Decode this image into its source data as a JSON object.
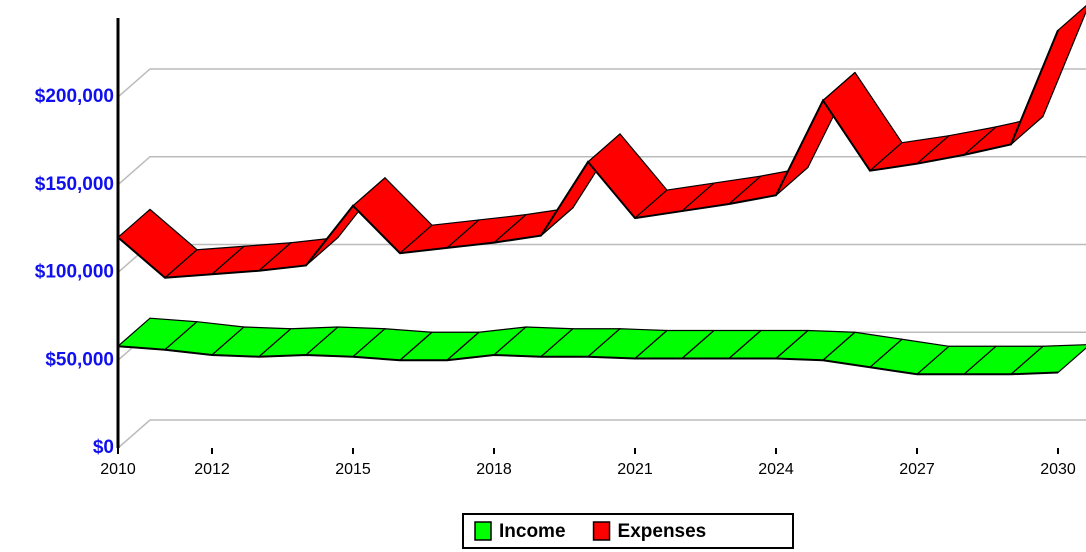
{
  "chart_data": {
    "type": "line",
    "x": [
      2010,
      2011,
      2012,
      2013,
      2014,
      2015,
      2016,
      2017,
      2018,
      2019,
      2020,
      2021,
      2022,
      2023,
      2024,
      2025,
      2026,
      2027,
      2028,
      2029,
      2030
    ],
    "series": [
      {
        "name": "Income",
        "color": "#00ff00",
        "values": [
          58000,
          56000,
          53000,
          52000,
          53000,
          52000,
          50000,
          50000,
          53000,
          52000,
          52000,
          51000,
          51000,
          51000,
          51000,
          50000,
          46000,
          42000,
          42000,
          42000,
          43000
        ]
      },
      {
        "name": "Expenses",
        "color": "#ff0000",
        "values": [
          120000,
          97000,
          99000,
          101000,
          104000,
          138000,
          111000,
          114000,
          117000,
          121000,
          163000,
          131000,
          135000,
          139000,
          144000,
          198000,
          158000,
          162000,
          167000,
          173000,
          238000
        ]
      }
    ],
    "xlim": [
      2010,
      2030
    ],
    "xticks": [
      2010,
      2012,
      2015,
      2018,
      2021,
      2024,
      2027,
      2030
    ],
    "ylim": [
      0,
      245000
    ],
    "yticks": [
      {
        "value": 0,
        "label": "$0"
      },
      {
        "value": 50000,
        "label": "$50,000"
      },
      {
        "value": 100000,
        "label": "$100,000"
      },
      {
        "value": 150000,
        "label": "$150,000"
      },
      {
        "value": 200000,
        "label": "$200,000"
      }
    ],
    "grid": true
  }
}
